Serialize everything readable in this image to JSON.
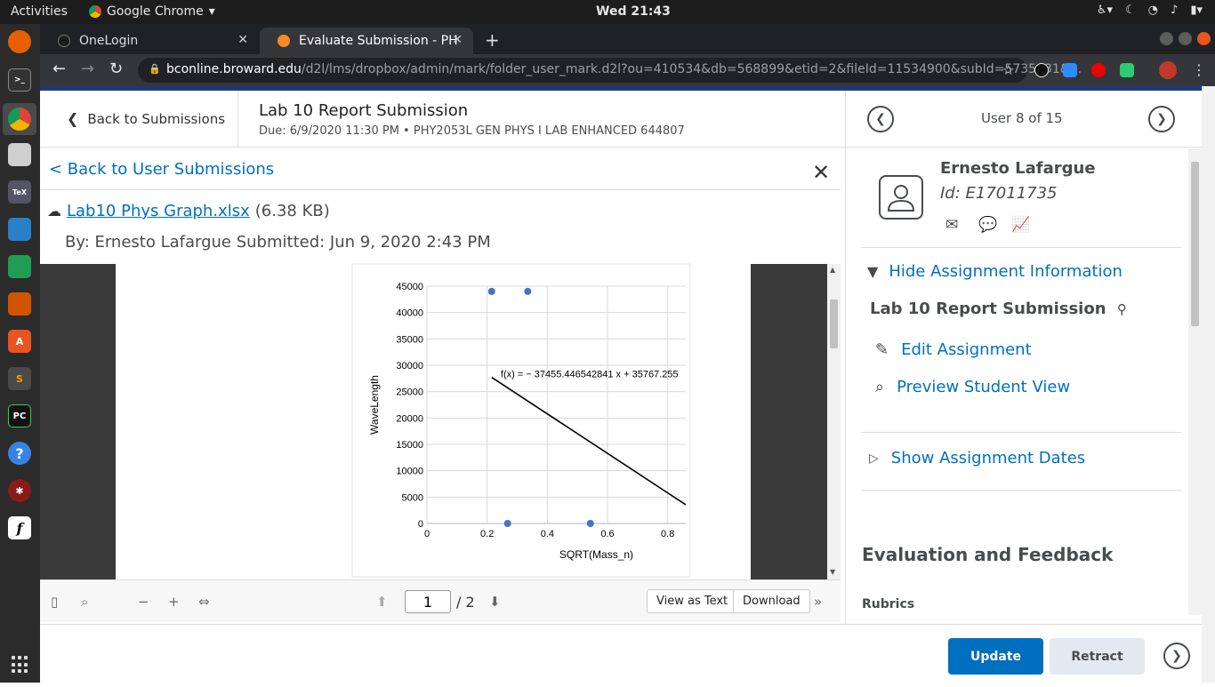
{
  "os": {
    "activities": "Activities",
    "app_name": "Google Chrome",
    "clock": "Wed 21:43"
  },
  "browser": {
    "tabs": [
      {
        "title": "OneLogin",
        "active": false
      },
      {
        "title": "Evaluate Submission - PH",
        "active": true
      }
    ],
    "url_host": "bconline.broward.edu",
    "url_path": "/d2l/lms/dropbox/admin/mark/folder_user_mark.d2l?ou=410534&db=568899&etid=2&fileId=11534900&subId=5735431&..."
  },
  "header": {
    "back_to_submissions": "Back to Submissions",
    "assignment_title": "Lab 10 Report Submission",
    "due_line": "Due: 6/9/2020 11:30 PM • PHY2053L GEN PHYS I LAB ENHANCED 644807",
    "user_count": "User 8 of 15"
  },
  "submission": {
    "back_to_user_submissions": "< Back to User Submissions",
    "file_name": "Lab10 Phys Graph.xlsx",
    "file_size": "(6.38 KB)",
    "by_line": "By: Ernesto Lafargue  Submitted: Jun 9, 2020 2:43 PM"
  },
  "chart_data": {
    "type": "scatter",
    "xlabel": "SQRT(Mass_n)",
    "ylabel": "WaveLength",
    "xlim": [
      0,
      0.86
    ],
    "ylim": [
      0,
      45000
    ],
    "x_ticks": [
      "0",
      "0.2",
      "0.4",
      "0.6",
      "0.8"
    ],
    "y_ticks": [
      "0",
      "5000",
      "10000",
      "15000",
      "20000",
      "25000",
      "30000",
      "35000",
      "40000",
      "45000"
    ],
    "points": [
      {
        "x": 0.215,
        "y": 44000
      },
      {
        "x": 0.335,
        "y": 44000
      },
      {
        "x": 0.268,
        "y": 0
      },
      {
        "x": 0.543,
        "y": 0
      }
    ],
    "trendline": {
      "x_start": 0.215,
      "x_end": 0.86,
      "slope": -37455.446542841,
      "intercept": 35767.255
    },
    "trendline_label": "f(x) = − 37455.446542841 x + 35767.255",
    "grid": true
  },
  "viewer": {
    "page_current": "1",
    "page_total": "/ 2",
    "view_as_text": "View as Text",
    "download": "Download"
  },
  "student": {
    "name": "Ernesto Lafargue",
    "id": "Id: E17011735"
  },
  "assignment_info": {
    "hide_info": "Hide Assignment Information",
    "name": "Lab 10 Report Submission",
    "edit": "Edit Assignment",
    "preview": "Preview Student View",
    "show_dates": "Show Assignment Dates"
  },
  "evaluation": {
    "title": "Evaluation and Feedback",
    "rubrics": "Rubrics"
  },
  "actions": {
    "update": "Update",
    "retract": "Retract"
  },
  "colors": {
    "link": "#006fbf",
    "primary_button": "#006fbf",
    "point": "#4472c4"
  }
}
